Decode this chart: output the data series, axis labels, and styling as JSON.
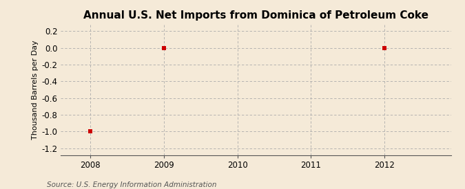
{
  "title": "Annual U.S. Net Imports from Dominica of Petroleum Coke",
  "ylabel": "Thousand Barrels per Day",
  "source": "Source: U.S. Energy Information Administration",
  "xlim": [
    2007.6,
    2012.9
  ],
  "ylim": [
    -1.28,
    0.28
  ],
  "xticks": [
    2008,
    2009,
    2010,
    2011,
    2012
  ],
  "yticks": [
    -1.2,
    -1.0,
    -0.8,
    -0.6,
    -0.4,
    -0.2,
    0.0,
    0.2
  ],
  "data_x": [
    2008,
    2009,
    2012
  ],
  "data_y": [
    -1.0,
    0.0,
    0.0
  ],
  "marker_color": "#cc0000",
  "marker_size": 4,
  "background_color": "#f5ead8",
  "grid_color": "#aaaaaa",
  "title_fontsize": 11,
  "axis_label_fontsize": 8,
  "tick_fontsize": 8.5,
  "source_fontsize": 7.5
}
